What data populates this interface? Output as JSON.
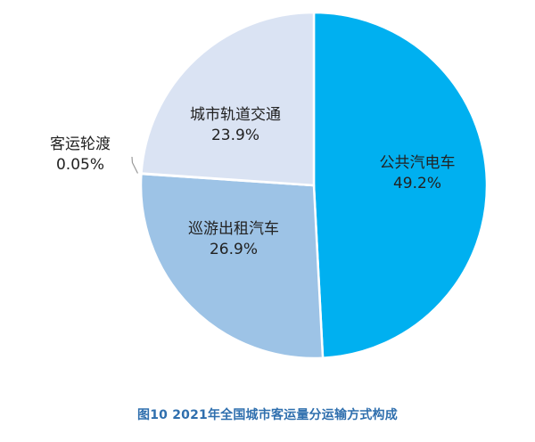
{
  "chart_data": {
    "type": "pie",
    "title": "",
    "slices": [
      {
        "label": "公共汽电车",
        "value": 49.2,
        "display": "49.2%",
        "color": "#00b0f0"
      },
      {
        "label": "巡游出租汽车",
        "value": 26.9,
        "display": "26.9%",
        "color": "#9dc3e6"
      },
      {
        "label": "客运轮渡",
        "value": 0.05,
        "display": "0.05%",
        "color": "#c5d5ea"
      },
      {
        "label": "城市轨道交通",
        "value": 23.9,
        "display": "23.9%",
        "color": "#dae3f3"
      }
    ],
    "legend": "none",
    "start": "top, clockwise"
  },
  "caption": "图10  2021年全国城市客运量分运输方式构成"
}
